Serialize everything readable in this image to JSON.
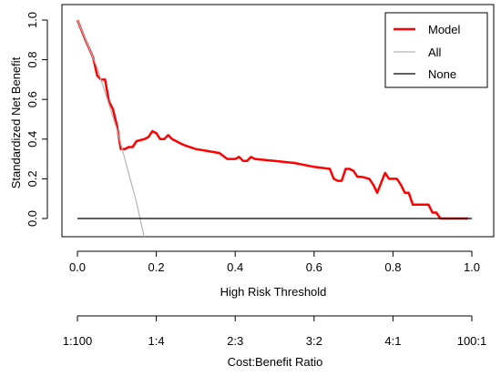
{
  "chart_data": {
    "type": "line",
    "xlabel": "High Risk Threshold",
    "ylabel": "Standardized Net Benefit",
    "xlim": [
      0,
      1
    ],
    "ylim": [
      -0.1,
      1.0
    ],
    "x_ticks": [
      "0.0",
      "0.2",
      "0.4",
      "0.6",
      "0.8",
      "1.0"
    ],
    "y_ticks": [
      "0.0",
      "0.2",
      "0.4",
      "0.6",
      "0.8",
      "1.0"
    ],
    "grid": false,
    "legend_position": "top-right",
    "series": [
      {
        "name": "Model",
        "color": "#ff0000",
        "x": [
          0.0,
          0.02,
          0.04,
          0.05,
          0.06,
          0.07,
          0.08,
          0.09,
          0.1,
          0.11,
          0.12,
          0.13,
          0.14,
          0.15,
          0.16,
          0.17,
          0.18,
          0.19,
          0.2,
          0.21,
          0.22,
          0.23,
          0.24,
          0.25,
          0.26,
          0.27,
          0.3,
          0.33,
          0.36,
          0.38,
          0.4,
          0.41,
          0.42,
          0.43,
          0.44,
          0.45,
          0.5,
          0.55,
          0.6,
          0.64,
          0.65,
          0.66,
          0.67,
          0.68,
          0.69,
          0.7,
          0.71,
          0.72,
          0.74,
          0.75,
          0.76,
          0.78,
          0.79,
          0.8,
          0.81,
          0.82,
          0.83,
          0.84,
          0.85,
          0.86,
          0.87,
          0.88,
          0.89,
          0.9,
          0.91,
          0.92,
          0.93,
          0.95,
          0.99
        ],
        "y": [
          1.0,
          0.9,
          0.81,
          0.72,
          0.7,
          0.7,
          0.59,
          0.55,
          0.47,
          0.35,
          0.35,
          0.36,
          0.36,
          0.39,
          0.395,
          0.4,
          0.41,
          0.44,
          0.43,
          0.4,
          0.4,
          0.42,
          0.4,
          0.39,
          0.38,
          0.37,
          0.35,
          0.34,
          0.33,
          0.3,
          0.3,
          0.31,
          0.29,
          0.29,
          0.31,
          0.3,
          0.29,
          0.28,
          0.26,
          0.25,
          0.2,
          0.19,
          0.19,
          0.25,
          0.25,
          0.24,
          0.21,
          0.21,
          0.2,
          0.17,
          0.13,
          0.23,
          0.2,
          0.2,
          0.2,
          0.17,
          0.13,
          0.13,
          0.07,
          0.07,
          0.07,
          0.07,
          0.07,
          0.03,
          0.03,
          0.0,
          0.0,
          0.0,
          0.0
        ]
      },
      {
        "name": "All",
        "color": "#b3b3b3",
        "x": [
          0.0,
          0.05,
          0.1,
          0.15,
          0.17
        ],
        "y": [
          1.0,
          0.76,
          0.45,
          0.08,
          -0.1
        ]
      },
      {
        "name": "None",
        "color": "#000000",
        "x": [
          0.0,
          1.0
        ],
        "y": [
          0.0,
          0.0
        ]
      }
    ],
    "secondary_axis": {
      "label": "Cost:Benefit Ratio",
      "ticks": [
        "1:100",
        "1:4",
        "2:3",
        "3:2",
        "4:1",
        "100:1"
      ]
    }
  }
}
